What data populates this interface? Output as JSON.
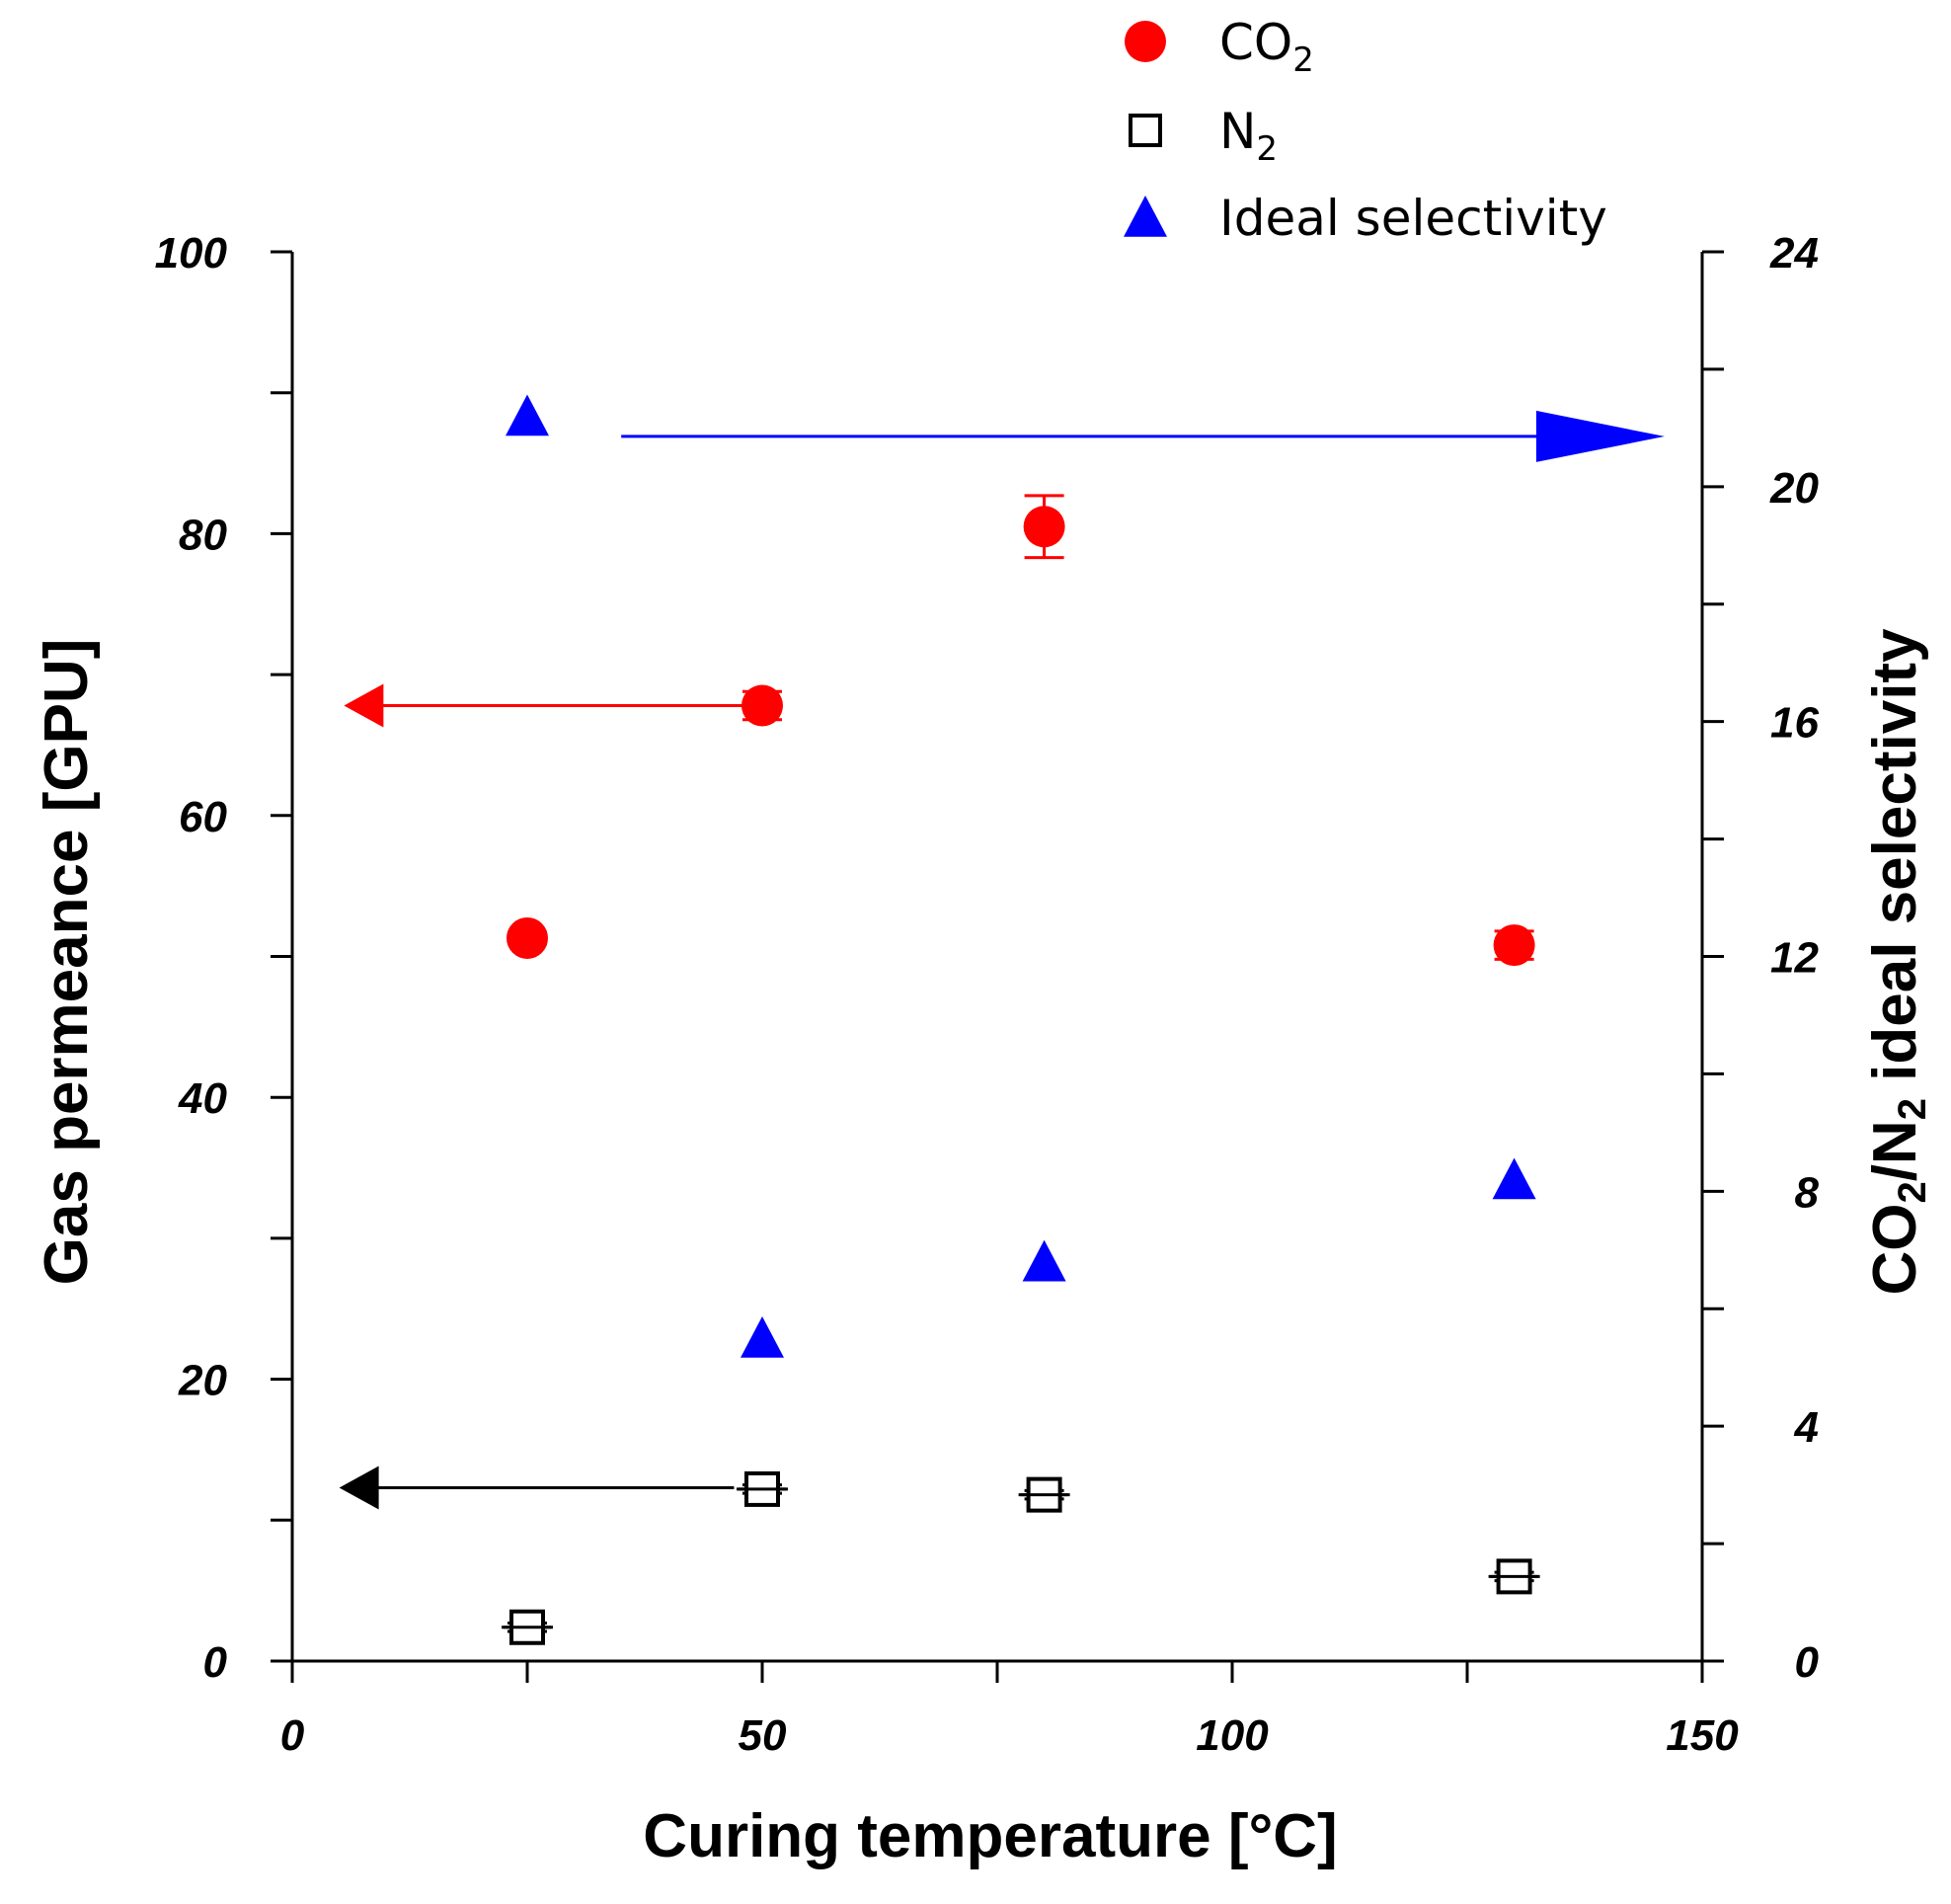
{
  "chart_data": {
    "type": "scatter",
    "xlabel": "Curing temperature [°C]",
    "ylabel_left": "Gas permeance [GPU]",
    "ylabel_right": {
      "main": "CO",
      "sub1": "2",
      "mid": "/N",
      "sub2": "2",
      "tail": " ideal selectivity"
    },
    "xlim": [
      0,
      150
    ],
    "ylim_left": [
      0,
      100
    ],
    "ylim_right": [
      0,
      24
    ],
    "x_ticks": [
      "0",
      "50",
      "100",
      "150"
    ],
    "y_left_ticks": [
      "0",
      "20",
      "40",
      "60",
      "80",
      "100"
    ],
    "y_right_ticks": [
      "0",
      "4",
      "8",
      "12",
      "16",
      "20",
      "24"
    ],
    "legend": [
      {
        "main": "CO",
        "sub": "2",
        "marker": "circle",
        "color": "#ff0000"
      },
      {
        "main": "N",
        "sub": "2",
        "marker": "square",
        "color": "#000000"
      },
      {
        "main": "Ideal selectivity",
        "sub": "",
        "marker": "triangle",
        "color": "#0000ff"
      }
    ],
    "series": [
      {
        "name": "CO2",
        "axis": "left",
        "marker": "circle",
        "color": "#ff0000",
        "points": [
          {
            "x": 25,
            "y": 51.3,
            "err": 0.4
          },
          {
            "x": 50,
            "y": 67.8,
            "err": 1.0
          },
          {
            "x": 80,
            "y": 80.5,
            "err": 2.2
          },
          {
            "x": 130,
            "y": 50.8,
            "err": 1.0
          }
        ]
      },
      {
        "name": "N2",
        "axis": "left",
        "marker": "square",
        "color": "#000000",
        "points": [
          {
            "x": 25,
            "y": 2.4,
            "err": 0.3
          },
          {
            "x": 50,
            "y": 12.2,
            "err": 0.3
          },
          {
            "x": 80,
            "y": 11.8,
            "err": 0.3
          },
          {
            "x": 130,
            "y": 6.0,
            "err": 0.3
          }
        ]
      },
      {
        "name": "Ideal selectivity",
        "axis": "right",
        "marker": "triangle",
        "color": "#0000ff",
        "points": [
          {
            "x": 25,
            "y": 21.2
          },
          {
            "x": 50,
            "y": 5.5
          },
          {
            "x": 80,
            "y": 6.8
          },
          {
            "x": 130,
            "y": 8.2
          }
        ]
      }
    ],
    "annotations": [
      {
        "kind": "arrow",
        "color": "#0000ff",
        "axis": "left",
        "from": [
          35,
          86.9
        ],
        "to": [
          146,
          86.9
        ]
      },
      {
        "kind": "arrow",
        "color": "#ff0000",
        "axis": "left",
        "from": [
          48,
          67.8
        ],
        "to": [
          5.5,
          67.8
        ]
      },
      {
        "kind": "arrow",
        "color": "#000000",
        "axis": "left",
        "from": [
          47,
          12.3
        ],
        "to": [
          5,
          12.3
        ]
      }
    ]
  }
}
